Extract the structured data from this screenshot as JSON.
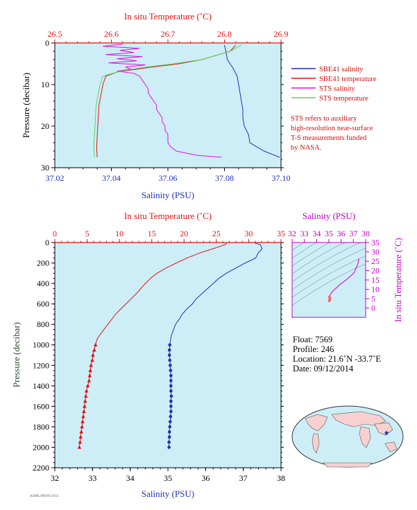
{
  "colors": {
    "plot_bg": "#cdeef6",
    "salinity": "#1f2fb8",
    "temperature": "#e01010",
    "sts_salinity": "#e010e0",
    "sts_temperature": "#60d060",
    "ts_axis": "#c000c0",
    "ink": "#000000",
    "pressure_label": "#2c4a2c",
    "note": "#d01010"
  },
  "chart_data": [
    {
      "id": "near-surface",
      "type": "line",
      "top_axis": {
        "label": "In situ Temperature (˚C)",
        "range": [
          26.5,
          26.9
        ],
        "ticks": [
          "26.5",
          "26.6",
          "26.7",
          "26.8",
          "26.9"
        ]
      },
      "bottom_axis": {
        "label": "Salinity (PSU)",
        "range": [
          37.02,
          37.1
        ],
        "ticks": [
          "37.02",
          "37.04",
          "37.06",
          "37.08",
          "37.10"
        ]
      },
      "left_axis": {
        "label": "Pressure (decibar)",
        "range": [
          0,
          30
        ],
        "inverted": true,
        "ticks": [
          "0",
          "10",
          "20",
          "30"
        ]
      },
      "legend": [
        {
          "name": "SBE41 salinity",
          "color_key": "salinity"
        },
        {
          "name": "SBE41 temperature",
          "color_key": "temperature"
        },
        {
          "name": "STS salinity",
          "color_key": "sts_salinity"
        },
        {
          "name": "STS temperature",
          "color_key": "sts_temperature"
        }
      ],
      "note": [
        "STS refers to auxiliary",
        "high-resolution near-surface",
        "T-S measurements funded",
        "by NASA."
      ],
      "series": [
        {
          "name": "SBE41 salinity",
          "axis": "salinity",
          "p": [
            0.5,
            2,
            4,
            6,
            8,
            10,
            12,
            14,
            16,
            18,
            20,
            22,
            24,
            26,
            27.5
          ],
          "v": [
            37.08,
            37.0805,
            37.081,
            37.083,
            37.0845,
            37.085,
            37.0855,
            37.086,
            37.0865,
            37.0865,
            37.087,
            37.0885,
            37.089,
            37.094,
            37.0995
          ]
        },
        {
          "name": "SBE41 temperature",
          "axis": "temperature",
          "p": [
            0.5,
            2,
            4,
            5,
            6,
            7,
            8,
            10,
            15,
            20,
            25,
            27.5
          ],
          "v": [
            26.82,
            26.81,
            26.76,
            26.72,
            26.66,
            26.61,
            26.59,
            26.585,
            26.578,
            26.576,
            26.574,
            26.575
          ]
        },
        {
          "name": "STS salinity",
          "axis": "salinity",
          "p": [
            0.3,
            0.8,
            1.3,
            1.8,
            2.3,
            2.8,
            3.3,
            3.8,
            4.3,
            4.8,
            5.3,
            5.8,
            6.3,
            6.8,
            7.3,
            8,
            9,
            10,
            11,
            12,
            13,
            14,
            15,
            16,
            17,
            18,
            19,
            20,
            21,
            22,
            23,
            24,
            25,
            26,
            27,
            27.5
          ],
          "v": [
            37.044,
            37.037,
            37.05,
            37.043,
            37.048,
            37.038,
            37.051,
            37.042,
            37.049,
            37.039,
            37.052,
            37.045,
            37.047,
            37.042,
            37.048,
            37.05,
            37.051,
            37.052,
            37.053,
            37.053,
            37.054,
            37.055,
            37.056,
            37.056,
            37.057,
            37.058,
            37.058,
            37.059,
            37.059,
            37.06,
            37.06,
            37.06,
            37.061,
            37.063,
            37.07,
            37.079
          ]
        },
        {
          "name": "STS temperature",
          "axis": "temperature",
          "p": [
            0.5,
            2,
            4,
            5,
            6,
            7,
            8,
            10,
            15,
            20,
            25,
            27.5
          ],
          "v": [
            26.83,
            26.81,
            26.76,
            26.71,
            26.65,
            26.61,
            26.585,
            26.58,
            26.573,
            26.571,
            26.569,
            26.57
          ]
        }
      ]
    },
    {
      "id": "full-profile",
      "type": "line",
      "top_axis": {
        "label": "In situ Temperature (˚C)",
        "range": [
          0,
          35
        ],
        "ticks": [
          "0",
          "5",
          "10",
          "15",
          "20",
          "25",
          "30",
          "35"
        ]
      },
      "bottom_axis": {
        "label": "Salinity (PSU)",
        "range": [
          32,
          38
        ],
        "ticks": [
          "32",
          "33",
          "34",
          "35",
          "36",
          "37",
          "38"
        ]
      },
      "left_axis": {
        "label": "Pressure (decibar)",
        "range": [
          0,
          2200
        ],
        "inverted": true,
        "ticks": [
          "0",
          "200",
          "400",
          "600",
          "800",
          "1000",
          "1200",
          "1400",
          "1600",
          "1800",
          "2000",
          "2200"
        ]
      },
      "series": [
        {
          "name": "salinity",
          "axis": "salinity",
          "marker": "dot",
          "p": [
            5,
            20,
            60,
            100,
            150,
            200,
            250,
            300,
            350,
            400,
            450,
            500,
            550,
            600,
            650,
            700,
            750,
            800,
            850,
            900,
            950,
            1000,
            1050,
            1100,
            1150,
            1200,
            1250,
            1300,
            1350,
            1400,
            1450,
            1500,
            1550,
            1600,
            1650,
            1700,
            1750,
            1800,
            1850,
            1900,
            1950,
            2000
          ],
          "v": [
            37.3,
            37.45,
            37.5,
            37.4,
            37.33,
            37.05,
            36.8,
            36.55,
            36.35,
            36.2,
            36.05,
            35.9,
            35.75,
            35.65,
            35.5,
            35.38,
            35.3,
            35.2,
            35.15,
            35.1,
            35.07,
            35.05,
            35.04,
            35.04,
            35.05,
            35.06,
            35.07,
            35.08,
            35.08,
            35.08,
            35.08,
            35.09,
            35.08,
            35.08,
            35.08,
            35.07,
            35.06,
            35.05,
            35.04,
            35.04,
            35.03,
            35.03
          ]
        },
        {
          "name": "temperature",
          "axis": "temperature",
          "marker": "triangle",
          "p": [
            5,
            20,
            60,
            100,
            150,
            200,
            250,
            300,
            350,
            400,
            450,
            500,
            550,
            600,
            650,
            700,
            750,
            800,
            850,
            900,
            950,
            1000,
            1050,
            1100,
            1150,
            1200,
            1250,
            1300,
            1350,
            1400,
            1450,
            1500,
            1550,
            1600,
            1650,
            1700,
            1750,
            1800,
            1850,
            1900,
            1950,
            2000
          ],
          "v": [
            26.6,
            26.4,
            24.5,
            22.5,
            20.5,
            18.8,
            17.2,
            15.8,
            14.8,
            14.0,
            13.3,
            12.6,
            11.8,
            11.0,
            10.2,
            9.4,
            8.8,
            8.2,
            7.6,
            7.0,
            6.5,
            6.3,
            6.1,
            5.9,
            5.8,
            5.6,
            5.5,
            5.4,
            5.3,
            5.1,
            4.9,
            4.8,
            4.7,
            4.6,
            4.5,
            4.4,
            4.3,
            4.2,
            4.1,
            4.0,
            3.9,
            3.8
          ]
        }
      ]
    },
    {
      "id": "ts-diagram",
      "type": "line",
      "top_axis": {
        "label": "Salinity (PSU)",
        "range": [
          32,
          38
        ],
        "ticks": [
          "32",
          "33",
          "34",
          "35",
          "36",
          "37",
          "38"
        ]
      },
      "right_axis": {
        "label": "In situ Temperature (˚C)",
        "range": [
          -5,
          35
        ],
        "ticks": [
          "0",
          "5",
          "10",
          "15",
          "20",
          "25",
          "30",
          "35"
        ]
      },
      "series": [
        {
          "name": "T-S curve",
          "s": [
            37.45,
            37.4,
            37.3,
            37.05,
            36.55,
            36.2,
            35.9,
            35.65,
            35.38,
            35.2,
            35.1,
            35.05,
            35.04,
            35.06,
            35.08,
            35.08,
            35.08,
            35.07,
            35.05,
            35.03
          ],
          "t": [
            26.4,
            24.5,
            22.5,
            18.8,
            15.8,
            14.0,
            12.6,
            11.0,
            9.4,
            8.2,
            7.0,
            6.3,
            5.9,
            5.6,
            5.4,
            5.1,
            4.8,
            4.5,
            4.2,
            3.8
          ]
        }
      ]
    }
  ],
  "float_info": {
    "float": "Float:  7569",
    "profile": "Profile:  246",
    "location": "Location:  21.6˚N  -33.7˚E",
    "date": "Date:  09/12/2014"
  },
  "map": {
    "marker": "★"
  },
  "footer_tag": "AOML/PHOD 2014"
}
